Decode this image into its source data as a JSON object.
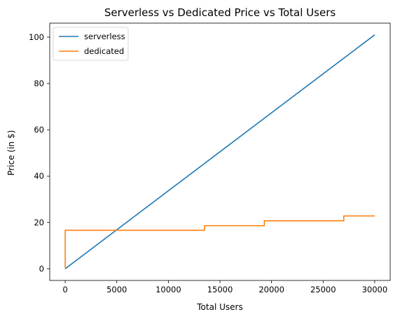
{
  "chart_data": {
    "type": "line",
    "title": "Serverless vs Dedicated Price vs Total Users",
    "xlabel": "Total Users",
    "ylabel": "Price (in $)",
    "xlim": [
      -1500,
      31500
    ],
    "ylim": [
      -5.05,
      106.05
    ],
    "xticks": [
      0,
      5000,
      10000,
      15000,
      20000,
      25000,
      30000
    ],
    "yticks": [
      0,
      20,
      40,
      60,
      80,
      100
    ],
    "legend_position": "top-left",
    "grid": false,
    "series": [
      {
        "name": "serverless",
        "color": "#1f77b4",
        "x": [
          0,
          30000
        ],
        "y": [
          0,
          101
        ]
      },
      {
        "name": "dedicated",
        "color": "#ff7f0e",
        "step": true,
        "x": [
          0,
          0,
          13500,
          13500,
          19300,
          19300,
          27000,
          27000,
          30000
        ],
        "y": [
          0,
          16.6,
          16.6,
          18.6,
          18.6,
          20.7,
          20.7,
          22.8,
          22.8
        ]
      }
    ]
  }
}
